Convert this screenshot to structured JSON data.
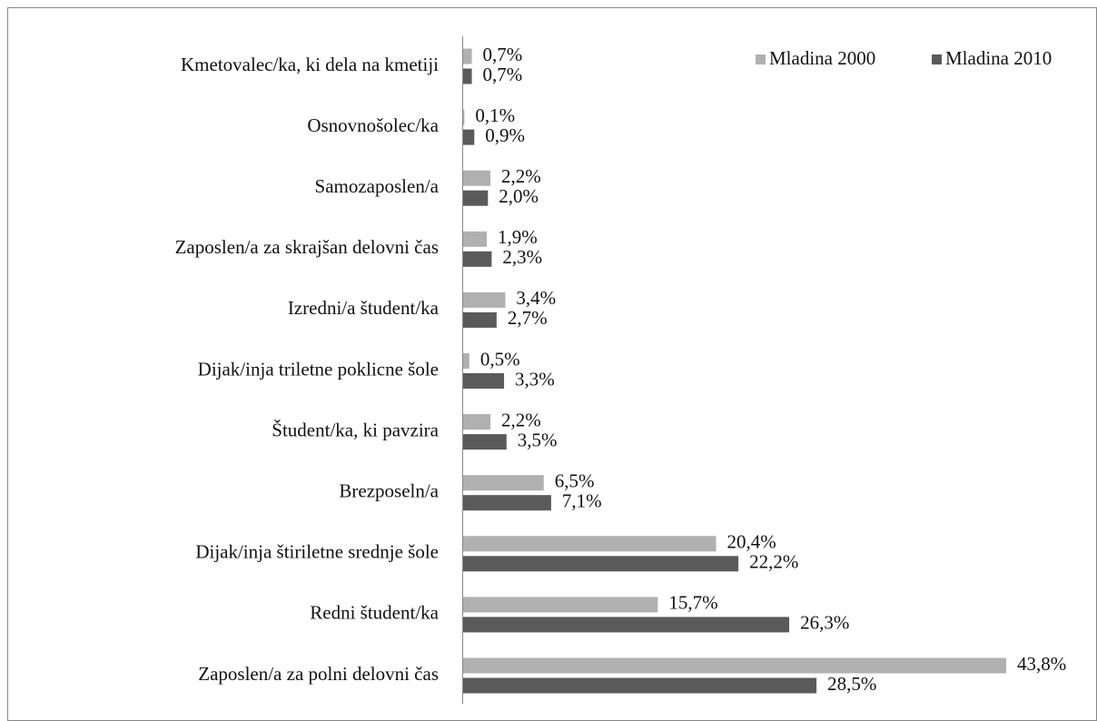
{
  "chart_data": {
    "type": "bar",
    "orientation": "horizontal",
    "categories": [
      "Kmetovalec/ka, ki dela na kmetiji",
      "Osnovnošolec/ka",
      "Samozaposlen/a",
      "Zaposlen/a za skrajšan delovni čas",
      "Izredni/a študent/ka",
      "Dijak/inja triletne poklicne šole",
      "Študent/ka, ki pavzira",
      "Brezposeln/a",
      "Dijak/inja štiriletne srednje šole",
      "Redni študent/ka",
      "Zaposlen/a za polni delovni čas"
    ],
    "series": [
      {
        "name": "Mladina 2000",
        "color": "#b0b0b0",
        "values": [
          0.7,
          0.1,
          2.2,
          1.9,
          3.4,
          0.5,
          2.2,
          6.5,
          20.4,
          15.7,
          43.8
        ],
        "value_labels": [
          "0,7%",
          "0,1%",
          "2,2%",
          "1,9%",
          "3,4%",
          "0,5%",
          "2,2%",
          "6,5%",
          "20,4%",
          "15,7%",
          "43,8%"
        ]
      },
      {
        "name": "Mladina 2010",
        "color": "#5a5a5a",
        "values": [
          0.7,
          0.9,
          2.0,
          2.3,
          2.7,
          3.3,
          3.5,
          7.1,
          22.2,
          26.3,
          28.5
        ],
        "value_labels": [
          "0,7%",
          "0,9%",
          "2,0%",
          "2,3%",
          "2,7%",
          "3,3%",
          "3,5%",
          "7,1%",
          "22,2%",
          "26,3%",
          "28,5%"
        ]
      }
    ],
    "legend": "top-right"
  }
}
